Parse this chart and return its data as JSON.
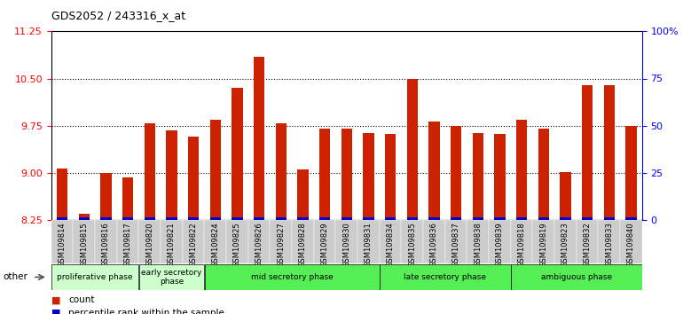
{
  "title": "GDS2052 / 243316_x_at",
  "samples": [
    "GSM109814",
    "GSM109815",
    "GSM109816",
    "GSM109817",
    "GSM109820",
    "GSM109821",
    "GSM109822",
    "GSM109824",
    "GSM109825",
    "GSM109826",
    "GSM109827",
    "GSM109828",
    "GSM109829",
    "GSM109830",
    "GSM109831",
    "GSM109834",
    "GSM109835",
    "GSM109836",
    "GSM109837",
    "GSM109838",
    "GSM109839",
    "GSM109818",
    "GSM109819",
    "GSM109823",
    "GSM109832",
    "GSM109833",
    "GSM109840"
  ],
  "count_values": [
    9.07,
    8.34,
    8.99,
    8.93,
    9.78,
    9.68,
    9.58,
    9.84,
    10.35,
    10.85,
    9.78,
    9.05,
    9.7,
    9.7,
    9.63,
    9.62,
    10.5,
    9.82,
    9.75,
    9.63,
    9.62,
    9.84,
    9.7,
    9.01,
    10.4,
    10.4,
    9.75
  ],
  "percentile_values": [
    2,
    2,
    2,
    2,
    2,
    2,
    2,
    2,
    2,
    2,
    2,
    2,
    2,
    2,
    2,
    2,
    2,
    2,
    2,
    2,
    2,
    2,
    2,
    2,
    2,
    2,
    2
  ],
  "bar_color": "#cc2200",
  "percentile_color": "#0000cc",
  "ylim": [
    8.25,
    11.25
  ],
  "yticks": [
    8.25,
    9.0,
    9.75,
    10.5,
    11.25
  ],
  "right_yticks": [
    0,
    25,
    50,
    75,
    100
  ],
  "right_ylabels": [
    "0",
    "25",
    "50",
    "75",
    "100%"
  ],
  "dotted_yticks": [
    9.0,
    9.75,
    10.5
  ],
  "group_display": [
    {
      "label": "proliferative phase",
      "start": 0,
      "end": 4,
      "color": "#ccffcc"
    },
    {
      "label": "early secretory\nphase",
      "start": 4,
      "end": 7,
      "color": "#ccffcc"
    },
    {
      "label": "mid secretory phase",
      "start": 7,
      "end": 15,
      "color": "#55ee55"
    },
    {
      "label": "late secretory phase",
      "start": 15,
      "end": 21,
      "color": "#55ee55"
    },
    {
      "label": "ambiguous phase",
      "start": 21,
      "end": 27,
      "color": "#55ee55"
    }
  ],
  "bar_width": 0.5,
  "tick_bg_color": "#cccccc",
  "plot_bg_color": "#ffffff",
  "fig_bg_color": "#ffffff"
}
